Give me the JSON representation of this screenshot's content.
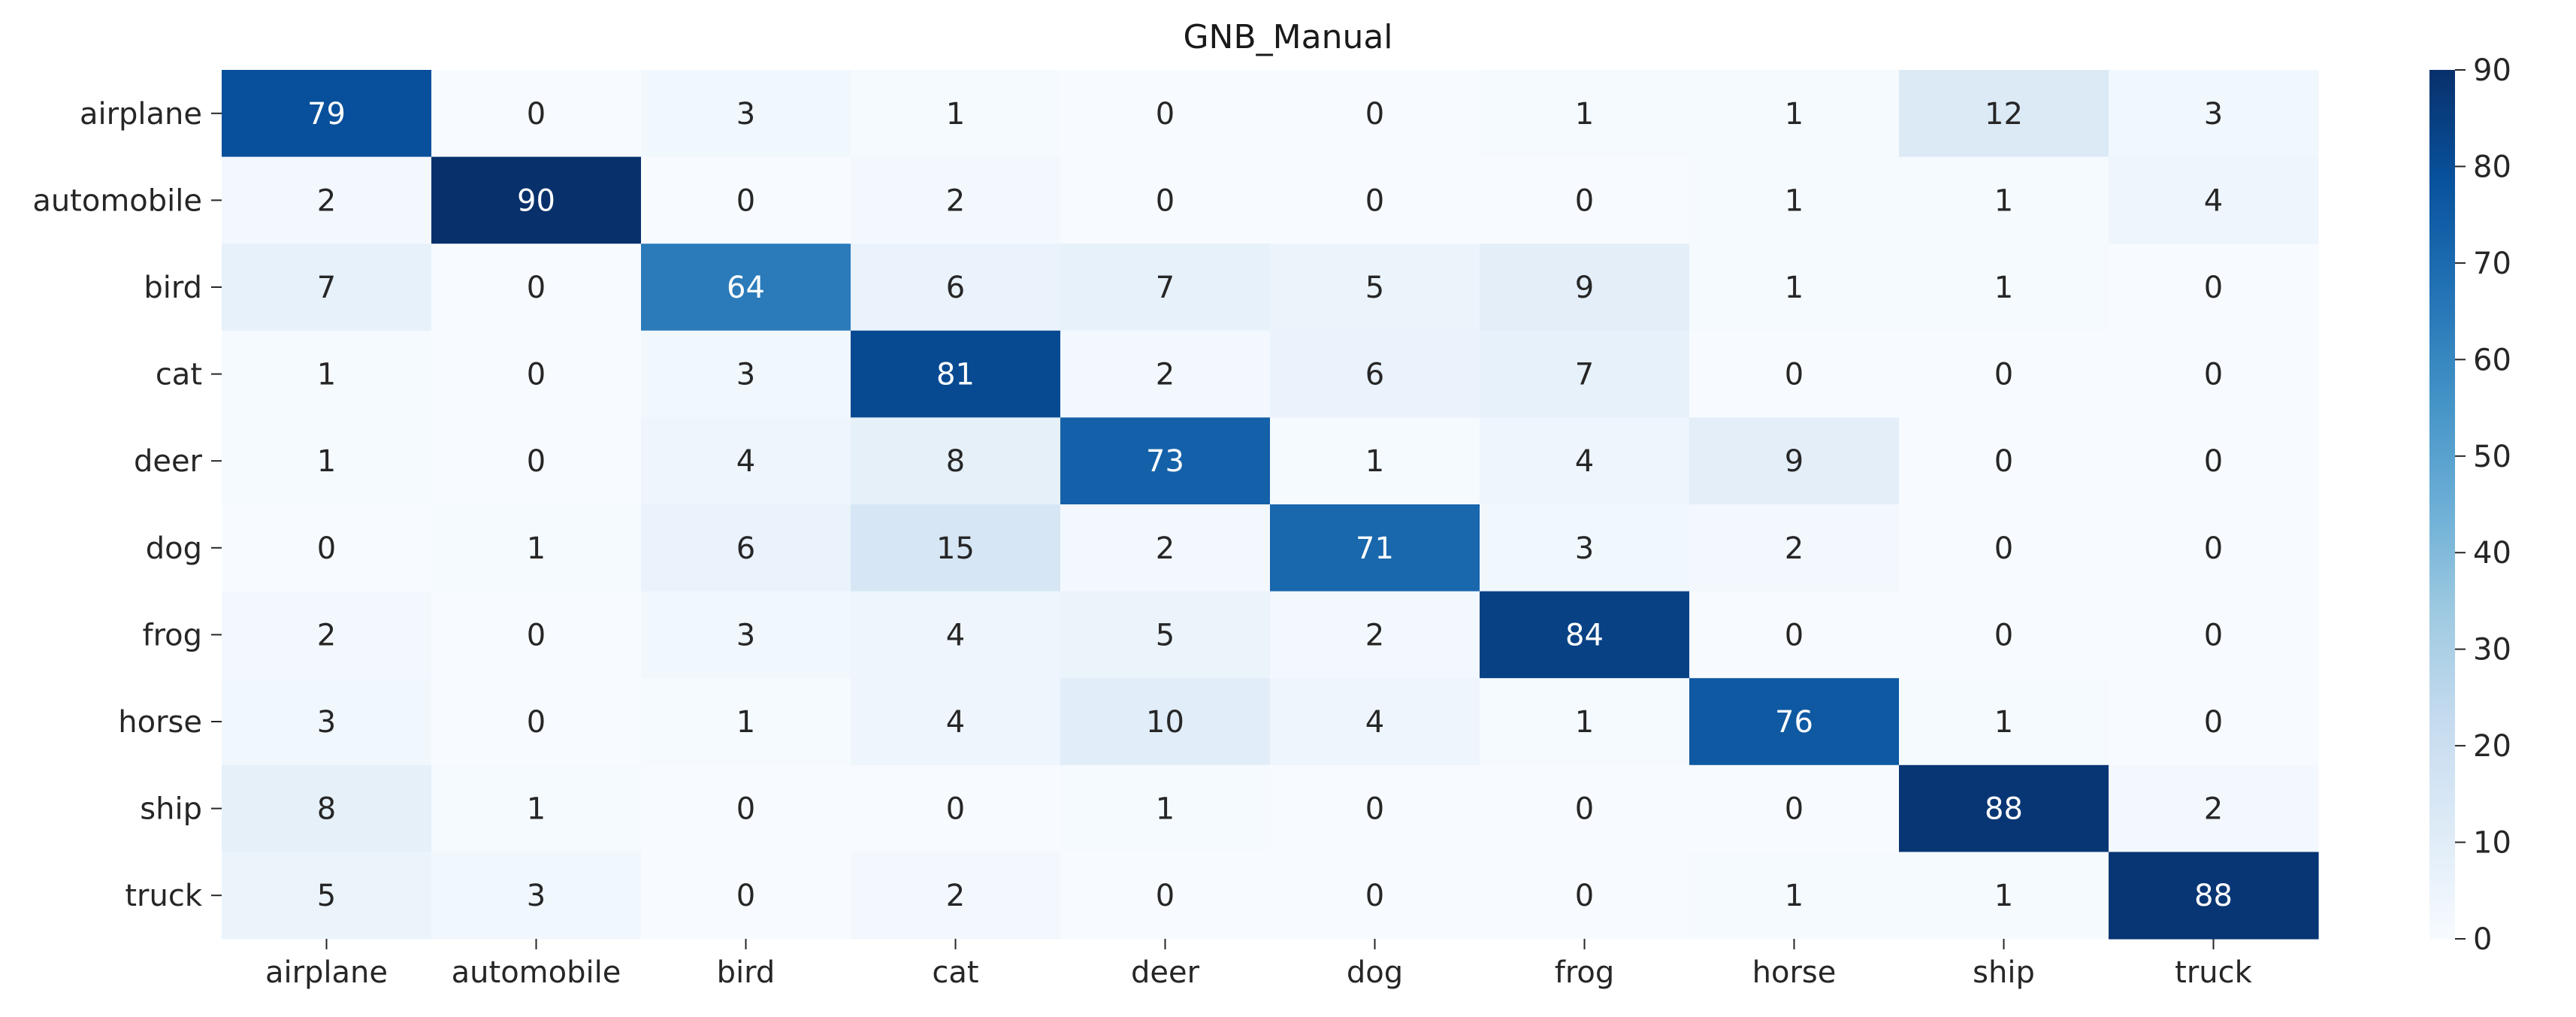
{
  "chart_data": {
    "type": "heatmap",
    "title": "GNB_Manual",
    "xlabel": "",
    "ylabel": "",
    "row_labels": [
      "airplane",
      "automobile",
      "bird",
      "cat",
      "deer",
      "dog",
      "frog",
      "horse",
      "ship",
      "truck"
    ],
    "col_labels": [
      "airplane",
      "automobile",
      "bird",
      "cat",
      "deer",
      "dog",
      "frog",
      "horse",
      "ship",
      "truck"
    ],
    "values": [
      [
        79,
        0,
        3,
        1,
        0,
        0,
        1,
        1,
        12,
        3
      ],
      [
        2,
        90,
        0,
        2,
        0,
        0,
        0,
        1,
        1,
        4
      ],
      [
        7,
        0,
        64,
        6,
        7,
        5,
        9,
        1,
        1,
        0
      ],
      [
        1,
        0,
        3,
        81,
        2,
        6,
        7,
        0,
        0,
        0
      ],
      [
        1,
        0,
        4,
        8,
        73,
        1,
        4,
        9,
        0,
        0
      ],
      [
        0,
        1,
        6,
        15,
        2,
        71,
        3,
        2,
        0,
        0
      ],
      [
        2,
        0,
        3,
        4,
        5,
        2,
        84,
        0,
        0,
        0
      ],
      [
        3,
        0,
        1,
        4,
        10,
        4,
        1,
        76,
        1,
        0
      ],
      [
        8,
        1,
        0,
        0,
        1,
        0,
        0,
        0,
        88,
        2
      ],
      [
        5,
        3,
        0,
        2,
        0,
        0,
        0,
        1,
        1,
        88
      ]
    ],
    "colormap": "Blues",
    "color_range": [
      0,
      90
    ],
    "colorbar_ticks": [
      0,
      10,
      20,
      30,
      40,
      50,
      60,
      70,
      80,
      90
    ],
    "grid": false,
    "legend": "colorbar-right"
  }
}
